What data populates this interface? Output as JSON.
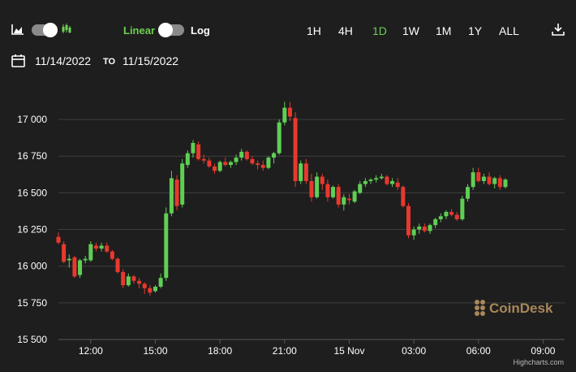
{
  "toolbar": {
    "chart_type_left_icon": "area-chart-icon",
    "chart_type_right_icon": "candlestick-icon",
    "scale_linear_label": "Linear",
    "scale_log_label": "Log",
    "ranges": [
      "1H",
      "4H",
      "1D",
      "1W",
      "1M",
      "1Y",
      "ALL"
    ],
    "active_range": "1D",
    "download_icon": "download-icon"
  },
  "date_range": {
    "calendar_icon": "calendar-icon",
    "from": "11/14/2022",
    "to_label": "TO",
    "to": "11/15/2022"
  },
  "watermark": "CoinDesk",
  "credit": "Highcharts.com",
  "colors": {
    "up": "#5fcf54",
    "down": "#e8392e",
    "accent": "#6ccf52",
    "background": "#1e1e1e",
    "grid": "#3e3e3e"
  },
  "chart_data": {
    "type": "candlestick",
    "yticks": [
      15500,
      15750,
      16000,
      16250,
      16500,
      16750,
      17000
    ],
    "ylim": [
      15500,
      17150
    ],
    "xlim": [
      10.5,
      34.0
    ],
    "xticks": [
      {
        "hour": 12,
        "label": "12:00"
      },
      {
        "hour": 15,
        "label": "15:00"
      },
      {
        "hour": 18,
        "label": "18:00"
      },
      {
        "hour": 21,
        "label": "21:00"
      },
      {
        "hour": 24,
        "label": "15 Nov"
      },
      {
        "hour": 27,
        "label": "03:00"
      },
      {
        "hour": 30,
        "label": "06:00"
      },
      {
        "hour": 33,
        "label": "09:00"
      }
    ],
    "candles": [
      [
        10.5,
        16200,
        16230,
        16150,
        16160
      ],
      [
        10.75,
        16150,
        16170,
        16020,
        16030
      ],
      [
        11.0,
        16040,
        16080,
        15990,
        16050
      ],
      [
        11.25,
        16060,
        16070,
        15920,
        15930
      ],
      [
        11.5,
        15940,
        16050,
        15920,
        16040
      ],
      [
        11.75,
        16040,
        16070,
        16020,
        16050
      ],
      [
        12.0,
        16040,
        16170,
        16030,
        16150
      ],
      [
        12.25,
        16140,
        16160,
        16100,
        16120
      ],
      [
        12.5,
        16120,
        16160,
        16100,
        16140
      ],
      [
        12.75,
        16140,
        16160,
        16090,
        16100
      ],
      [
        13.0,
        16100,
        16110,
        16040,
        16050
      ],
      [
        13.25,
        16050,
        16060,
        15950,
        15960
      ],
      [
        13.5,
        15960,
        15980,
        15850,
        15870
      ],
      [
        13.75,
        15870,
        15950,
        15860,
        15930
      ],
      [
        14.0,
        15930,
        15940,
        15880,
        15900
      ],
      [
        14.25,
        15900,
        15920,
        15850,
        15880
      ],
      [
        14.5,
        15880,
        15890,
        15810,
        15850
      ],
      [
        14.75,
        15850,
        15870,
        15800,
        15820
      ],
      [
        15.0,
        15830,
        15870,
        15820,
        15860
      ],
      [
        15.25,
        15860,
        15950,
        15850,
        15920
      ],
      [
        15.5,
        15920,
        16400,
        15900,
        16360
      ],
      [
        15.75,
        16360,
        16650,
        16340,
        16600
      ],
      [
        16.0,
        16590,
        16620,
        16380,
        16410
      ],
      [
        16.25,
        16420,
        16730,
        16400,
        16700
      ],
      [
        16.5,
        16690,
        16790,
        16670,
        16770
      ],
      [
        16.75,
        16770,
        16860,
        16740,
        16840
      ],
      [
        17.0,
        16830,
        16850,
        16720,
        16730
      ],
      [
        17.25,
        16730,
        16760,
        16700,
        16720
      ],
      [
        17.5,
        16720,
        16740,
        16670,
        16680
      ],
      [
        17.75,
        16680,
        16700,
        16630,
        16650
      ],
      [
        18.0,
        16650,
        16720,
        16640,
        16710
      ],
      [
        18.25,
        16710,
        16740,
        16680,
        16690
      ],
      [
        18.5,
        16690,
        16720,
        16670,
        16710
      ],
      [
        18.75,
        16710,
        16760,
        16690,
        16740
      ],
      [
        19.0,
        16740,
        16800,
        16720,
        16780
      ],
      [
        19.25,
        16780,
        16790,
        16720,
        16730
      ],
      [
        19.5,
        16730,
        16750,
        16690,
        16700
      ],
      [
        19.75,
        16700,
        16720,
        16660,
        16690
      ],
      [
        20.0,
        16690,
        16720,
        16650,
        16670
      ],
      [
        20.25,
        16670,
        16750,
        16660,
        16740
      ],
      [
        20.5,
        16740,
        16780,
        16700,
        16770
      ],
      [
        20.75,
        16770,
        17000,
        16760,
        16980
      ],
      [
        21.0,
        16980,
        17120,
        16960,
        17080
      ],
      [
        21.25,
        17080,
        17120,
        16990,
        17020
      ],
      [
        21.5,
        17010,
        17050,
        16540,
        16580
      ],
      [
        21.75,
        16580,
        16720,
        16560,
        16700
      ],
      [
        22.0,
        16700,
        16730,
        16560,
        16580
      ],
      [
        22.25,
        16580,
        16630,
        16440,
        16470
      ],
      [
        22.5,
        16470,
        16640,
        16460,
        16610
      ],
      [
        22.75,
        16610,
        16630,
        16520,
        16560
      ],
      [
        23.0,
        16560,
        16590,
        16440,
        16470
      ],
      [
        23.25,
        16470,
        16550,
        16460,
        16540
      ],
      [
        23.5,
        16540,
        16560,
        16400,
        16420
      ],
      [
        23.75,
        16420,
        16490,
        16380,
        16470
      ],
      [
        24.0,
        16460,
        16490,
        16420,
        16450
      ],
      [
        24.25,
        16440,
        16520,
        16430,
        16510
      ],
      [
        24.5,
        16500,
        16580,
        16490,
        16560
      ],
      [
        24.75,
        16560,
        16600,
        16540,
        16580
      ],
      [
        25.0,
        16580,
        16600,
        16560,
        16590
      ],
      [
        25.25,
        16590,
        16620,
        16570,
        16600
      ],
      [
        25.5,
        16600,
        16630,
        16590,
        16610
      ],
      [
        25.75,
        16610,
        16620,
        16550,
        16560
      ],
      [
        26.0,
        16560,
        16600,
        16540,
        16580
      ],
      [
        26.25,
        16570,
        16600,
        16520,
        16540
      ],
      [
        26.5,
        16540,
        16550,
        16400,
        16410
      ],
      [
        26.75,
        16410,
        16430,
        16190,
        16210
      ],
      [
        27.0,
        16210,
        16270,
        16180,
        16250
      ],
      [
        27.25,
        16250,
        16290,
        16220,
        16270
      ],
      [
        27.5,
        16270,
        16290,
        16230,
        16240
      ],
      [
        27.75,
        16240,
        16290,
        16220,
        16280
      ],
      [
        28.0,
        16280,
        16330,
        16260,
        16320
      ],
      [
        28.25,
        16320,
        16360,
        16300,
        16340
      ],
      [
        28.5,
        16340,
        16380,
        16320,
        16370
      ],
      [
        28.75,
        16370,
        16390,
        16340,
        16350
      ],
      [
        29.0,
        16350,
        16370,
        16310,
        16320
      ],
      [
        29.25,
        16320,
        16480,
        16310,
        16460
      ],
      [
        29.5,
        16460,
        16560,
        16440,
        16540
      ],
      [
        29.75,
        16540,
        16670,
        16520,
        16640
      ],
      [
        30.0,
        16640,
        16670,
        16570,
        16580
      ],
      [
        30.25,
        16580,
        16630,
        16560,
        16610
      ],
      [
        30.5,
        16610,
        16640,
        16550,
        16560
      ],
      [
        30.75,
        16560,
        16610,
        16530,
        16600
      ],
      [
        31.0,
        16600,
        16620,
        16520,
        16540
      ],
      [
        31.25,
        16540,
        16600,
        16530,
        16590
      ]
    ]
  }
}
